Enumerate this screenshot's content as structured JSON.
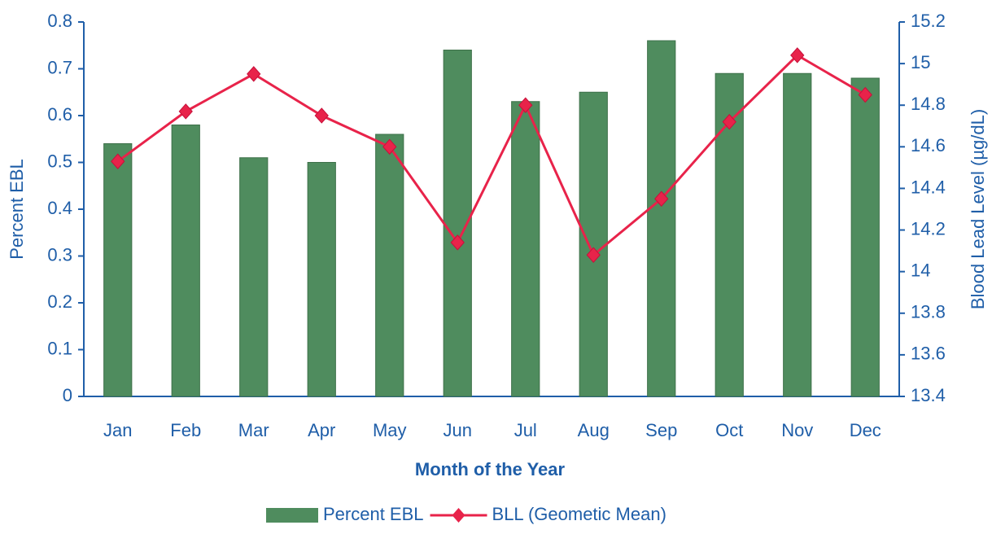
{
  "chart_data": {
    "type": "bar-line",
    "categories": [
      "Jan",
      "Feb",
      "Mar",
      "Apr",
      "May",
      "Jun",
      "Jul",
      "Aug",
      "Sep",
      "Oct",
      "Nov",
      "Dec"
    ],
    "series": [
      {
        "name": "Percent EBL",
        "type": "bar",
        "color": "#4f8c5e",
        "values": [
          0.54,
          0.58,
          0.51,
          0.5,
          0.56,
          0.74,
          0.63,
          0.65,
          0.76,
          0.69,
          0.69,
          0.68
        ]
      },
      {
        "name": "BLL (Geometic Mean)",
        "type": "line",
        "axis": "y2",
        "color": "#e8234a",
        "values": [
          14.53,
          14.77,
          14.95,
          14.75,
          14.6,
          14.14,
          14.8,
          14.08,
          14.35,
          14.72,
          15.04,
          14.85
        ]
      }
    ],
    "xlabel": "Month of the Year",
    "ylabel": "Percent EBL",
    "y2label": "Blood Lead Level (µg/dL)",
    "ylim": [
      0,
      0.8
    ],
    "yticks": [
      0,
      0.1,
      0.2,
      0.3,
      0.4,
      0.5,
      0.6,
      0.7,
      0.8
    ],
    "y2lim": [
      13.4,
      15.2
    ],
    "y2ticks": [
      13.4,
      13.6,
      13.8,
      14,
      14.2,
      14.4,
      14.6,
      14.8,
      15,
      15.2
    ],
    "legend": "bottom"
  }
}
